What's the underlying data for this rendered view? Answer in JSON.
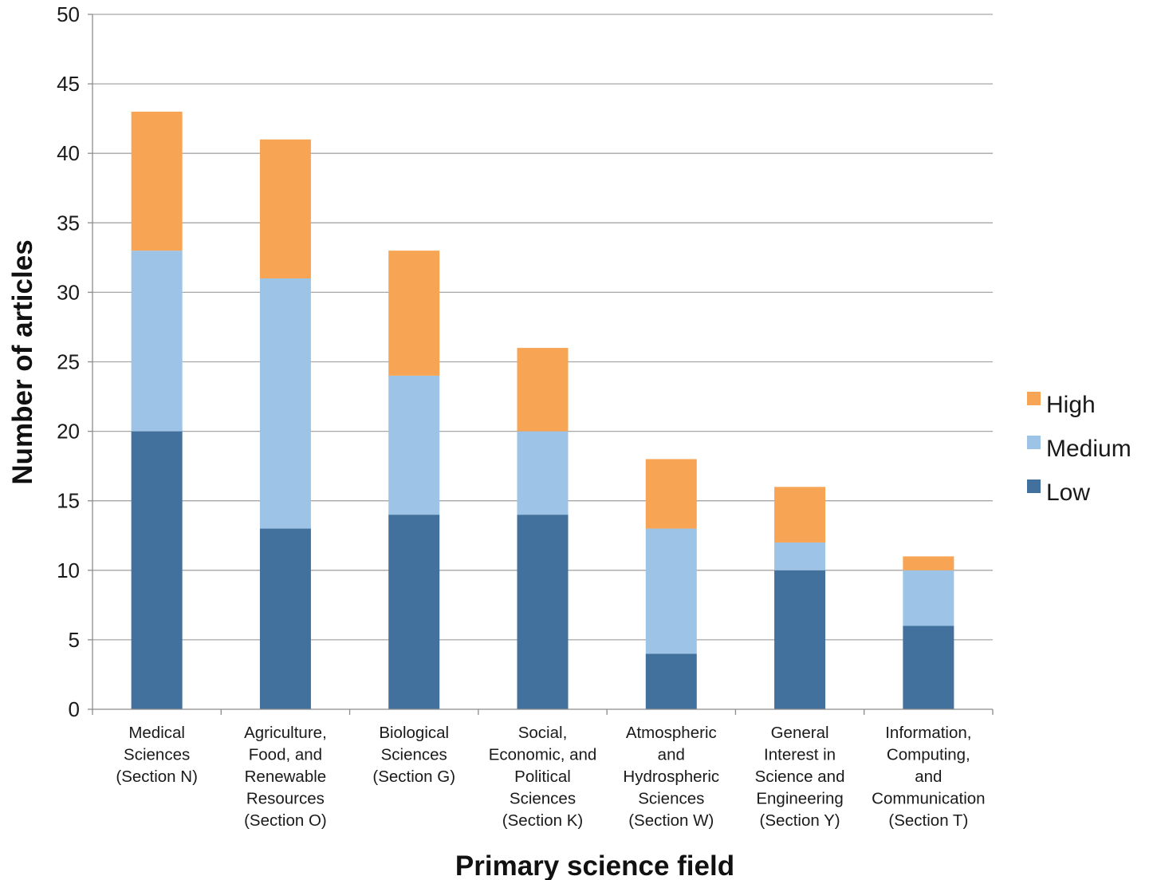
{
  "chart_data": {
    "type": "bar",
    "stacked": true,
    "title": "",
    "xlabel": "Primary science field",
    "ylabel": "Number of articles",
    "ylim": [
      0,
      50
    ],
    "yticks": [
      0,
      5,
      10,
      15,
      20,
      25,
      30,
      35,
      40,
      45,
      50
    ],
    "grid": true,
    "legend_position": "right",
    "categories": [
      [
        "Medical",
        "Sciences",
        "(Section N)"
      ],
      [
        "Agriculture,",
        "Food, and",
        "Renewable",
        "Resources",
        "(Section O)"
      ],
      [
        "Biological",
        "Sciences",
        "(Section G)"
      ],
      [
        "Social,",
        "Economic, and",
        "Political",
        "Sciences",
        "(Section K)"
      ],
      [
        "Atmospheric",
        "and",
        "Hydrospheric",
        "Sciences",
        "(Section W)"
      ],
      [
        "General",
        "Interest in",
        "Science and",
        "Engineering",
        "(Section Y)"
      ],
      [
        "Information,",
        "Computing,",
        "and",
        "Communication",
        "(Section T)"
      ]
    ],
    "series": [
      {
        "name": "Low",
        "color": "#41719c",
        "values": [
          20,
          13,
          14,
          14,
          4,
          10,
          6
        ]
      },
      {
        "name": "Medium",
        "color": "#9dc3e6",
        "values": [
          13,
          18,
          10,
          6,
          9,
          2,
          4
        ]
      },
      {
        "name": "High",
        "color": "#f7a554",
        "values": [
          10,
          10,
          9,
          6,
          5,
          4,
          1
        ]
      }
    ],
    "legend_order": [
      "High",
      "Medium",
      "Low"
    ]
  },
  "colors": {
    "grid": "#a6a6a6",
    "axis": "#8c8c8c",
    "text": "#1a1a1a"
  }
}
